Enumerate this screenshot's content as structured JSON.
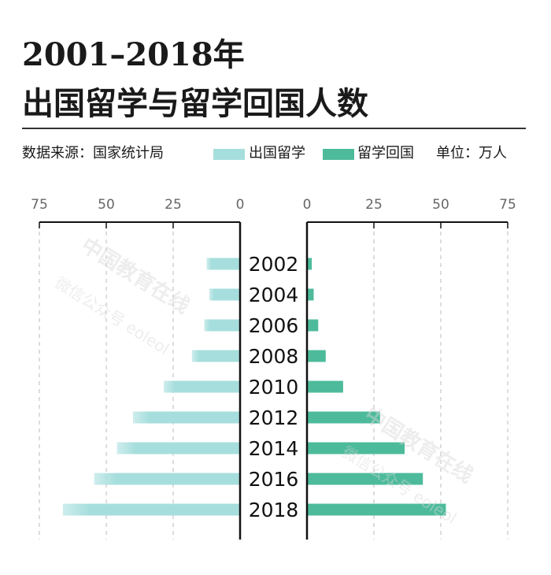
{
  "header": {
    "title_line1": "2001–2018年",
    "title_line2": "出国留学与留学回国人数"
  },
  "legend": {
    "source": "数据来源：国家统计局",
    "series1_label": "出国留学",
    "series2_label": "留学回国",
    "unit": "单位：万人"
  },
  "watermark": {
    "line1": "中国教育在线",
    "line2": "微信公众号 eoleol"
  },
  "colors": {
    "study_abroad": "#a6dedd",
    "returnees": "#4dbb9b",
    "axis": "#111111",
    "grid": "#bbbbbb"
  },
  "chart_data": {
    "type": "bar",
    "orientation": "horizontal-butterfly",
    "categories": [
      "2002",
      "2004",
      "2006",
      "2008",
      "2010",
      "2012",
      "2014",
      "2016",
      "2018"
    ],
    "series": [
      {
        "name": "出国留学",
        "side": "left",
        "values": [
          12.5,
          11.5,
          13.4,
          18.0,
          28.5,
          40.0,
          46.0,
          54.5,
          66.2
        ]
      },
      {
        "name": "留学回国",
        "side": "right",
        "values": [
          1.8,
          2.5,
          4.2,
          7.0,
          13.5,
          27.3,
          36.5,
          43.3,
          51.9
        ]
      }
    ],
    "left_ticks": [
      "75",
      "50",
      "25",
      "0"
    ],
    "right_ticks": [
      "0",
      "25",
      "50",
      "75"
    ],
    "xlim": [
      0,
      75
    ],
    "grid": true,
    "unit": "万人"
  }
}
